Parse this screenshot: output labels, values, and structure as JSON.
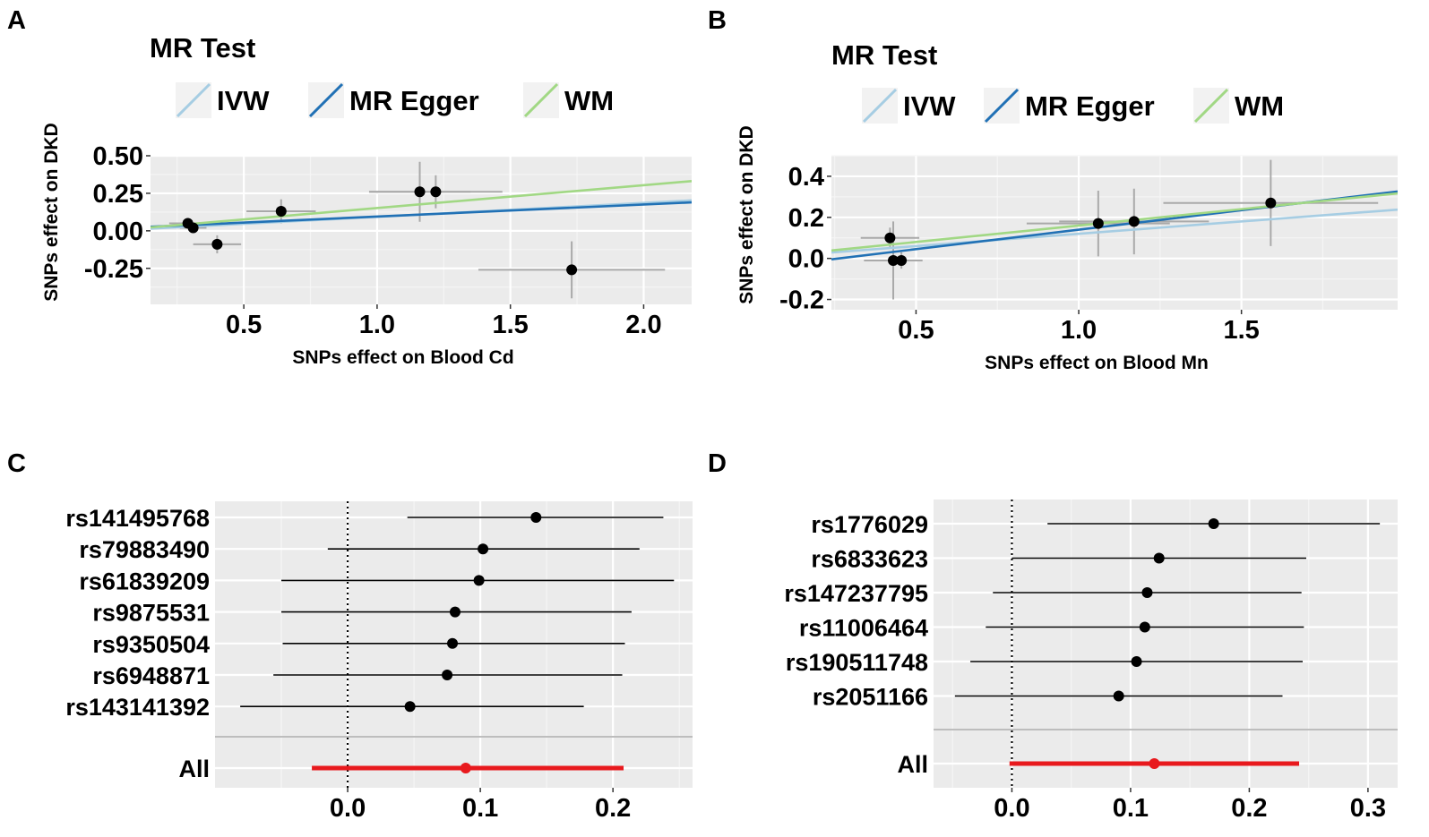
{
  "chart_data": [
    {
      "id": "A",
      "panel_label": "A",
      "type": "scatter",
      "legend_title": "MR Test",
      "legend": [
        {
          "label": "IVW",
          "color": "#a6cde3"
        },
        {
          "label": "MR Egger",
          "color": "#2171b5"
        },
        {
          "label": "WM",
          "color": "#a1d884"
        }
      ],
      "xlabel": "SNPs effect on Blood Cd",
      "ylabel": "SNPs effect on DKD",
      "xlim": [
        0.15,
        2.18
      ],
      "ylim": [
        -0.49,
        0.5
      ],
      "xticks": [
        0.5,
        1.0,
        1.5,
        2.0
      ],
      "xtick_labels": [
        "0.5",
        "1.0",
        "1.5",
        "2.0"
      ],
      "yticks": [
        0.5,
        0.25,
        0.0,
        -0.25
      ],
      "ytick_labels": [
        "0.50",
        "0.25",
        "0.00",
        "-0.25"
      ],
      "points": [
        {
          "x": 0.29,
          "y": 0.05,
          "xerr": 0.07,
          "yerr": 0.03
        },
        {
          "x": 0.31,
          "y": 0.02,
          "xerr": 0.05,
          "yerr": 0.03
        },
        {
          "x": 0.4,
          "y": -0.09,
          "xerr": 0.09,
          "yerr": 0.06
        },
        {
          "x": 0.64,
          "y": 0.13,
          "xerr": 0.13,
          "yerr": 0.08
        },
        {
          "x": 1.16,
          "y": 0.26,
          "xerr": 0.19,
          "yerr": 0.2
        },
        {
          "x": 1.22,
          "y": 0.26,
          "xerr": 0.25,
          "yerr": 0.11
        },
        {
          "x": 1.73,
          "y": -0.26,
          "xerr": 0.35,
          "yerr": 0.19
        }
      ],
      "series": [
        {
          "name": "IVW",
          "intercept": 0,
          "slope": 0.093
        },
        {
          "name": "MR Egger",
          "intercept": 0.015,
          "slope": 0.08
        },
        {
          "name": "WM",
          "intercept": 0.0,
          "slope": 0.152
        }
      ]
    },
    {
      "id": "B",
      "panel_label": "B",
      "type": "scatter",
      "legend_title": "MR Test",
      "legend": [
        {
          "label": "IVW",
          "color": "#a6cde3"
        },
        {
          "label": "MR Egger",
          "color": "#2171b5"
        },
        {
          "label": "WM",
          "color": "#a1d884"
        }
      ],
      "xlabel": "SNPs effect on Blood Mn",
      "ylabel": "SNPs effect on DKD",
      "xlim": [
        0.24,
        1.98
      ],
      "ylim": [
        -0.25,
        0.5
      ],
      "xticks": [
        0.5,
        1.0,
        1.5
      ],
      "xtick_labels": [
        "0.5",
        "1.0",
        "1.5"
      ],
      "yticks": [
        0.4,
        0.2,
        0.0,
        -0.2
      ],
      "ytick_labels": [
        "0.4",
        "0.2",
        "0.0",
        "-0.2"
      ],
      "points": [
        {
          "x": 0.42,
          "y": 0.1,
          "xerr": 0.09,
          "yerr": 0.05
        },
        {
          "x": 0.43,
          "y": -0.01,
          "xerr": 0.09,
          "yerr": 0.19
        },
        {
          "x": 0.455,
          "y": -0.01,
          "xerr": 0.03,
          "yerr": 0.04
        },
        {
          "x": 1.06,
          "y": 0.17,
          "xerr": 0.22,
          "yerr": 0.16
        },
        {
          "x": 1.17,
          "y": 0.18,
          "xerr": 0.23,
          "yerr": 0.16
        },
        {
          "x": 1.59,
          "y": 0.27,
          "xerr": 0.33,
          "yerr": 0.21
        }
      ],
      "series": [
        {
          "name": "IVW",
          "intercept": 0,
          "slope": 0.12
        },
        {
          "name": "MR Egger",
          "intercept": -0.05,
          "slope": 0.19
        },
        {
          "name": "WM",
          "intercept": 0.0,
          "slope": 0.16
        }
      ]
    },
    {
      "id": "C",
      "panel_label": "C",
      "type": "forest",
      "labels": [
        "rs141495768",
        "rs79883490",
        "rs61839209",
        "rs9875531",
        "rs9350504",
        "rs6948871",
        "rs143141392"
      ],
      "estimates": [
        0.142,
        0.102,
        0.099,
        0.081,
        0.079,
        0.075,
        0.047
      ],
      "lower": [
        0.045,
        -0.015,
        -0.05,
        -0.05,
        -0.049,
        -0.056,
        -0.081
      ],
      "upper": [
        0.238,
        0.22,
        0.246,
        0.214,
        0.209,
        0.207,
        0.178
      ],
      "overall": {
        "label": "All",
        "estimate": 0.089,
        "lower": -0.027,
        "upper": 0.208,
        "color": "#e8191d"
      },
      "xlim": [
        -0.1,
        0.26
      ],
      "xticks": [
        0.0,
        0.1,
        0.2
      ],
      "xtick_labels": [
        "0.0",
        "0.1",
        "0.2"
      ]
    },
    {
      "id": "D",
      "panel_label": "D",
      "type": "forest",
      "labels": [
        "rs1776029",
        "rs6833623",
        "rs147237795",
        "rs11006464",
        "rs190511748",
        "rs2051166"
      ],
      "estimates": [
        0.17,
        0.124,
        0.114,
        0.112,
        0.105,
        0.09
      ],
      "lower": [
        0.03,
        0.0,
        -0.016,
        -0.022,
        -0.035,
        -0.048
      ],
      "upper": [
        0.31,
        0.248,
        0.244,
        0.246,
        0.245,
        0.228
      ],
      "overall": {
        "label": "All",
        "estimate": 0.12,
        "lower": -0.002,
        "upper": 0.242,
        "color": "#e8191d"
      },
      "xlim": [
        -0.066,
        0.325
      ],
      "xticks": [
        0.0,
        0.1,
        0.2,
        0.3
      ],
      "xtick_labels": [
        "0.0",
        "0.1",
        "0.2",
        "0.3"
      ]
    }
  ]
}
